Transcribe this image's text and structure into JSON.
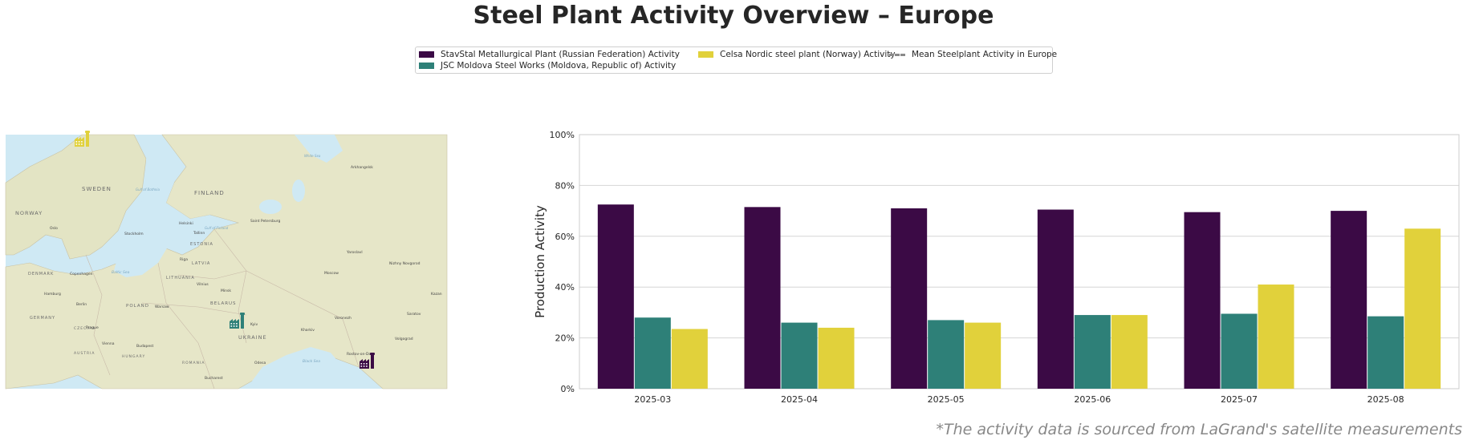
{
  "title": "Steel Plant Activity Overview – Europe",
  "footnote": "*The activity data is sourced from LaGrand's satellite measurements",
  "colors": {
    "stavstal": "#3b0a45",
    "moldova": "#2e8078",
    "celsa": "#e1d13b",
    "mean": "#8a8a8a"
  },
  "legend": {
    "items": [
      {
        "label": "StavStal Metallurgical Plant (Russian Federation) Activity",
        "color": "#3b0a45"
      },
      {
        "label": "JSC Moldova Steel Works (Moldova, Republic of) Activity",
        "color": "#2e8078"
      },
      {
        "label": "Celsa Nordic steel plant (Norway) Activity",
        "color": "#e1d13b"
      },
      {
        "label": "Mean Steelplant Activity in Europe",
        "color": "#8a8a8a"
      }
    ]
  },
  "map": {
    "labels": [
      "SWEDEN",
      "FINLAND",
      "NORWAY",
      "ESTONIA",
      "LATVIA",
      "LITHUANIA",
      "BELARUS",
      "POLAND",
      "DENMARK",
      "GERMANY",
      "CZECHIA",
      "AUSTRIA",
      "HUNGARY",
      "ROMANIA",
      "UKRAINE",
      "Baltic Sea",
      "Black Sea",
      "Gulf of Bothnia",
      "Gulf of Finland",
      "White Sea",
      "Helsinki",
      "Stockholm",
      "Oslo",
      "Tallinn",
      "Riga",
      "Vilnius",
      "Minsk",
      "Warsaw",
      "Kyiv",
      "Odesa",
      "Bucharest",
      "Budapest",
      "Vienna",
      "Prague",
      "Berlin",
      "Hamburg",
      "Copenhagen",
      "Moscow",
      "Saint Petersburg",
      "Arkhangelsk",
      "Yaroslavl",
      "Nizhny Novgorod",
      "Voronezh",
      "Kharkiv",
      "Rostov-on-Don",
      "Volgograd",
      "Saratov",
      "Kazan"
    ],
    "markers": [
      {
        "name": "Celsa Nordic steel plant",
        "icon": "factory-icon",
        "color": "#e1d13b"
      },
      {
        "name": "JSC Moldova Steel Works",
        "icon": "factory-icon",
        "color": "#2e8078"
      },
      {
        "name": "StavStal Metallurgical Plant",
        "icon": "factory-icon",
        "color": "#3b0a45"
      }
    ]
  },
  "chart_data": {
    "type": "bar",
    "title": "",
    "xlabel": "",
    "ylabel": "Production Activity",
    "ylim": [
      0,
      100
    ],
    "yticks": [
      "0%",
      "20%",
      "40%",
      "60%",
      "80%",
      "100%"
    ],
    "grid": true,
    "legend_position": "top-center",
    "categories": [
      "2025-03",
      "2025-04",
      "2025-05",
      "2025-06",
      "2025-07",
      "2025-08"
    ],
    "series": [
      {
        "name": "StavStal Metallurgical Plant (Russian Federation) Activity",
        "color": "#3b0a45",
        "values": [
          72.5,
          71.5,
          71,
          70.5,
          69.5,
          70
        ]
      },
      {
        "name": "JSC Moldova Steel Works (Moldova, Republic of) Activity",
        "color": "#2e8078",
        "values": [
          28,
          26,
          27,
          29,
          29.5,
          28.5
        ]
      },
      {
        "name": "Celsa Nordic steel plant (Norway) Activity",
        "color": "#e1d13b",
        "values": [
          23.5,
          24,
          26,
          29,
          41,
          63
        ]
      }
    ]
  }
}
